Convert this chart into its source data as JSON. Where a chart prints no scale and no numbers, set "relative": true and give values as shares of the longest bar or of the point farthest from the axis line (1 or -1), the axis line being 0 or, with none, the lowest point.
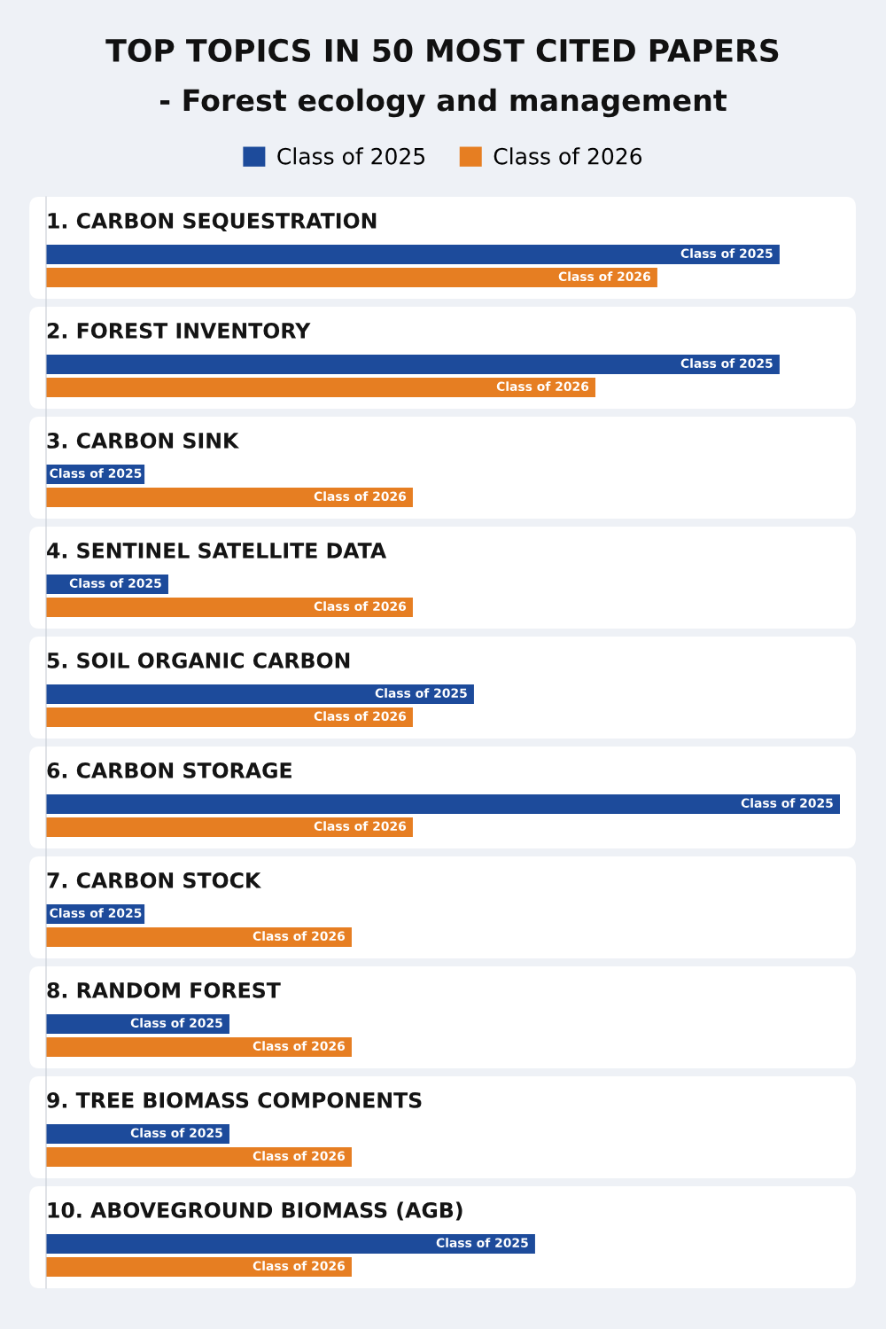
{
  "chart_data": {
    "type": "bar",
    "orientation": "horizontal",
    "relative": true,
    "title": "TOP TOPICS IN 50 MOST CITED PAPERS",
    "subtitle": "- Forest ecology and management",
    "categories": [
      "1. CARBON SEQUESTRATION",
      "2. FOREST INVENTORY",
      "3. CARBON SINK",
      "4. SENTINEL SATELLITE DATA",
      "5. SOIL ORGANIC CARBON",
      "6. CARBON STORAGE",
      "7. CARBON STOCK",
      "8. RANDOM FOREST",
      "9. TREE BIOMASS COMPONENTS",
      "10. ABOVEGROUND BIOMASS (AGB)"
    ],
    "series": [
      {
        "name": "Class of 2025",
        "color": "#1d4b9b",
        "values": [
          0.924,
          0.924,
          0.124,
          0.154,
          0.539,
          1.0,
          0.124,
          0.231,
          0.231,
          0.616
        ]
      },
      {
        "name": "Class of 2026",
        "color": "#e67e22",
        "values": [
          0.77,
          0.692,
          0.462,
          0.462,
          0.462,
          0.462,
          0.385,
          0.385,
          0.385,
          0.385
        ]
      }
    ],
    "legend": "top"
  }
}
